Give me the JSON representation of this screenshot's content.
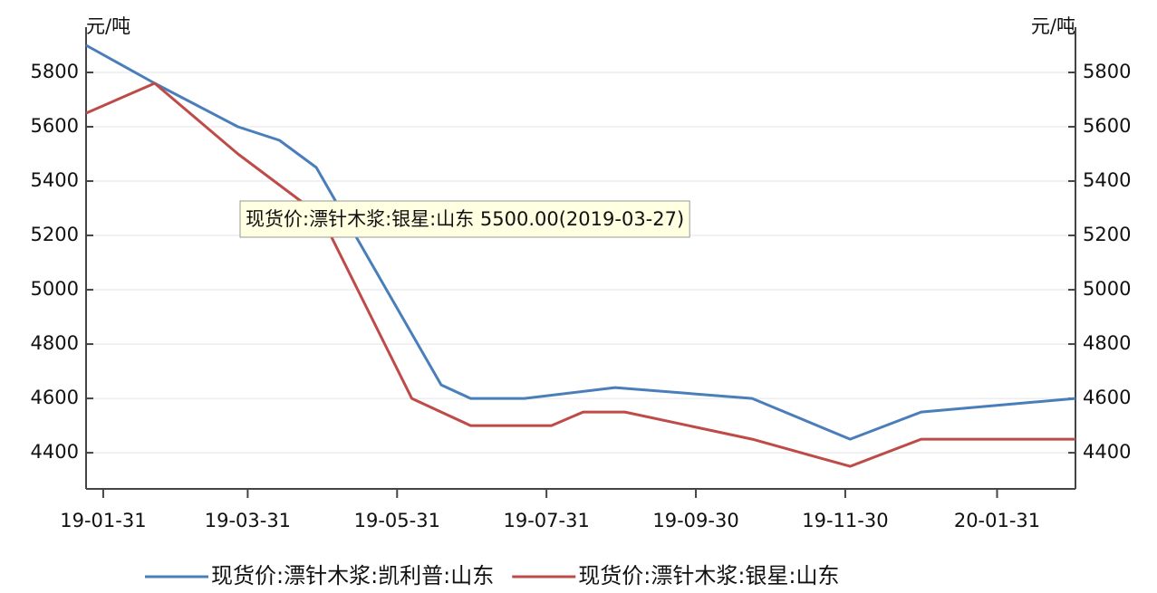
{
  "chart_data": {
    "type": "line",
    "y_unit_left": "元/吨",
    "y_unit_right": "元/吨",
    "xlim": [
      "2019-01-24",
      "2020-03-03"
    ],
    "xticks": [
      {
        "value": "2019-01-31",
        "label": "19-01-31"
      },
      {
        "value": "2019-03-31",
        "label": "19-03-31"
      },
      {
        "value": "2019-05-31",
        "label": "19-05-31"
      },
      {
        "value": "2019-07-31",
        "label": "19-07-31"
      },
      {
        "value": "2019-09-30",
        "label": "19-09-30"
      },
      {
        "value": "2019-11-30",
        "label": "19-11-30"
      },
      {
        "value": "2020-01-31",
        "label": "20-01-31"
      }
    ],
    "ylim": [
      4267,
      5950
    ],
    "yticks": [
      4400,
      4600,
      4800,
      5000,
      5200,
      5400,
      5600,
      5800
    ],
    "y2lim": [
      4267,
      5950
    ],
    "y2ticks": [
      4400,
      4600,
      4800,
      5000,
      5200,
      5400,
      5600,
      5800
    ],
    "grid": true,
    "series": [
      {
        "name": "现货价:漂针木浆:凯利普:山东",
        "color": "#4a7ebb",
        "x": [
          "2019-01-24",
          "2019-02-21",
          "2019-03-27",
          "2019-04-13",
          "2019-04-28",
          "2019-06-18",
          "2019-06-30",
          "2019-07-22",
          "2019-08-28",
          "2019-10-23",
          "2019-12-02",
          "2019-12-31",
          "2020-03-03"
        ],
        "values": [
          5900,
          5760,
          5600,
          5550,
          5450,
          4650,
          4600,
          4600,
          4640,
          4600,
          4450,
          4550,
          4600
        ]
      },
      {
        "name": "现货价:漂针木浆:银星:山东",
        "color": "#be4b48",
        "x": [
          "2019-01-24",
          "2019-02-21",
          "2019-03-27",
          "2019-04-30",
          "2019-06-06",
          "2019-06-30",
          "2019-08-02",
          "2019-08-15",
          "2019-09-01",
          "2019-10-23",
          "2019-12-02",
          "2019-12-31",
          "2020-03-03"
        ],
        "values": [
          5650,
          5760,
          5500,
          5270,
          4600,
          4500,
          4500,
          4550,
          4550,
          4450,
          4350,
          4450,
          4450
        ]
      }
    ],
    "tooltip": "现货价:漂针木浆:银星:山东 5500.00(2019-03-27)"
  }
}
